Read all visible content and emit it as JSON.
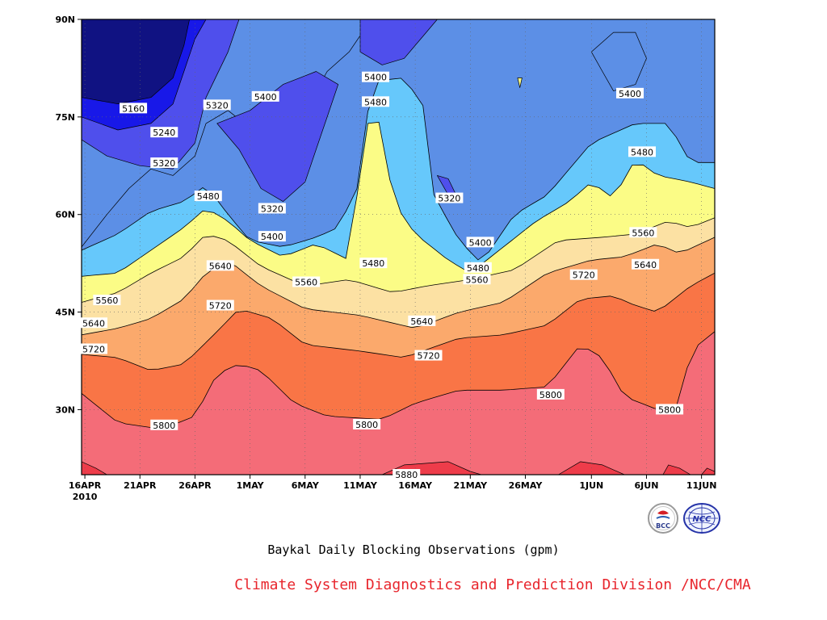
{
  "chart_data": {
    "type": "heatmap",
    "subtype": "filled-contour",
    "title": "Baykal Daily Blocking Observations (gpm)",
    "credit": "Climate System Diagnostics and Prediction Division /NCC/CMA",
    "x_axis": {
      "ticks": [
        {
          "day": 0,
          "label": "16APR",
          "sub": "2010"
        },
        {
          "day": 5,
          "label": "21APR"
        },
        {
          "day": 10,
          "label": "26APR"
        },
        {
          "day": 15,
          "label": "1MAY"
        },
        {
          "day": 20,
          "label": "6MAY"
        },
        {
          "day": 25,
          "label": "11MAY"
        },
        {
          "day": 30,
          "label": "16MAY"
        },
        {
          "day": 35,
          "label": "21MAY"
        },
        {
          "day": 40,
          "label": "26MAY"
        },
        {
          "day": 46,
          "label": "1JUN"
        },
        {
          "day": 51,
          "label": "6JUN"
        },
        {
          "day": 56,
          "label": "11JUN"
        }
      ],
      "range": [
        "16APR2010",
        "12JUN2010"
      ]
    },
    "y_axis": {
      "ticks": [
        90,
        75,
        60,
        45,
        30
      ],
      "tick_labels": [
        "90N",
        "75N",
        "60N",
        "45N",
        "30N"
      ],
      "ylim": [
        20,
        90
      ]
    },
    "levels": [
      5160,
      5240,
      5320,
      5400,
      5480,
      5560,
      5640,
      5720,
      5800,
      5880
    ],
    "level_colors": [
      "#101282",
      "#1818e8",
      "#4f4fec",
      "#5c8fe6",
      "#66c8fb",
      "#fbfc86",
      "#fce1a3",
      "#fba96c",
      "#f97546",
      "#f46c78",
      "#ee3c4a"
    ],
    "contour_labels": [
      {
        "value": "5160",
        "day": 4.4,
        "lat": 76.3
      },
      {
        "value": "5240",
        "day": 7.2,
        "lat": 72.6
      },
      {
        "value": "5320",
        "day": 7.2,
        "lat": 67.9
      },
      {
        "value": "5320",
        "day": 12.0,
        "lat": 76.8
      },
      {
        "value": "5400",
        "day": 16.4,
        "lat": 78.1
      },
      {
        "value": "5400",
        "day": 26.4,
        "lat": 81.1
      },
      {
        "value": "5480",
        "day": 26.4,
        "lat": 77.3
      },
      {
        "value": "5400",
        "day": 49.5,
        "lat": 78.6
      },
      {
        "value": "5480",
        "day": 11.2,
        "lat": 62.8
      },
      {
        "value": "5320",
        "day": 17.0,
        "lat": 60.9
      },
      {
        "value": "5320",
        "day": 33.1,
        "lat": 62.5
      },
      {
        "value": "5480",
        "day": 50.6,
        "lat": 69.6
      },
      {
        "value": "5400",
        "day": 17.0,
        "lat": 56.6
      },
      {
        "value": "5400",
        "day": 35.9,
        "lat": 55.7
      },
      {
        "value": "5480",
        "day": 26.2,
        "lat": 52.5
      },
      {
        "value": "5480",
        "day": 35.7,
        "lat": 51.8
      },
      {
        "value": "5560",
        "day": 50.7,
        "lat": 57.2
      },
      {
        "value": "5560",
        "day": 20.1,
        "lat": 49.6
      },
      {
        "value": "5560",
        "day": 35.6,
        "lat": 50.0
      },
      {
        "value": "5640",
        "day": 12.3,
        "lat": 52.1
      },
      {
        "value": "5640",
        "day": 50.9,
        "lat": 52.3
      },
      {
        "value": "5720",
        "day": 45.3,
        "lat": 50.7
      },
      {
        "value": "5560",
        "day": 2.0,
        "lat": 46.8
      },
      {
        "value": "5640",
        "day": 0.8,
        "lat": 43.3
      },
      {
        "value": "5720",
        "day": 0.8,
        "lat": 39.3
      },
      {
        "value": "5720",
        "day": 12.3,
        "lat": 46.0
      },
      {
        "value": "5640",
        "day": 30.6,
        "lat": 43.6
      },
      {
        "value": "5720",
        "day": 31.2,
        "lat": 38.3
      },
      {
        "value": "5800",
        "day": 7.2,
        "lat": 27.6
      },
      {
        "value": "5800",
        "day": 25.6,
        "lat": 27.7
      },
      {
        "value": "5800",
        "day": 42.3,
        "lat": 32.3
      },
      {
        "value": "5800",
        "day": 53.1,
        "lat": 30.0
      },
      {
        "value": "5880",
        "day": 29.2,
        "lat": 20.0
      }
    ]
  },
  "logos": [
    {
      "name": "bcc-logo",
      "text": "BCC"
    },
    {
      "name": "ncc-logo",
      "text": "NCC"
    }
  ]
}
